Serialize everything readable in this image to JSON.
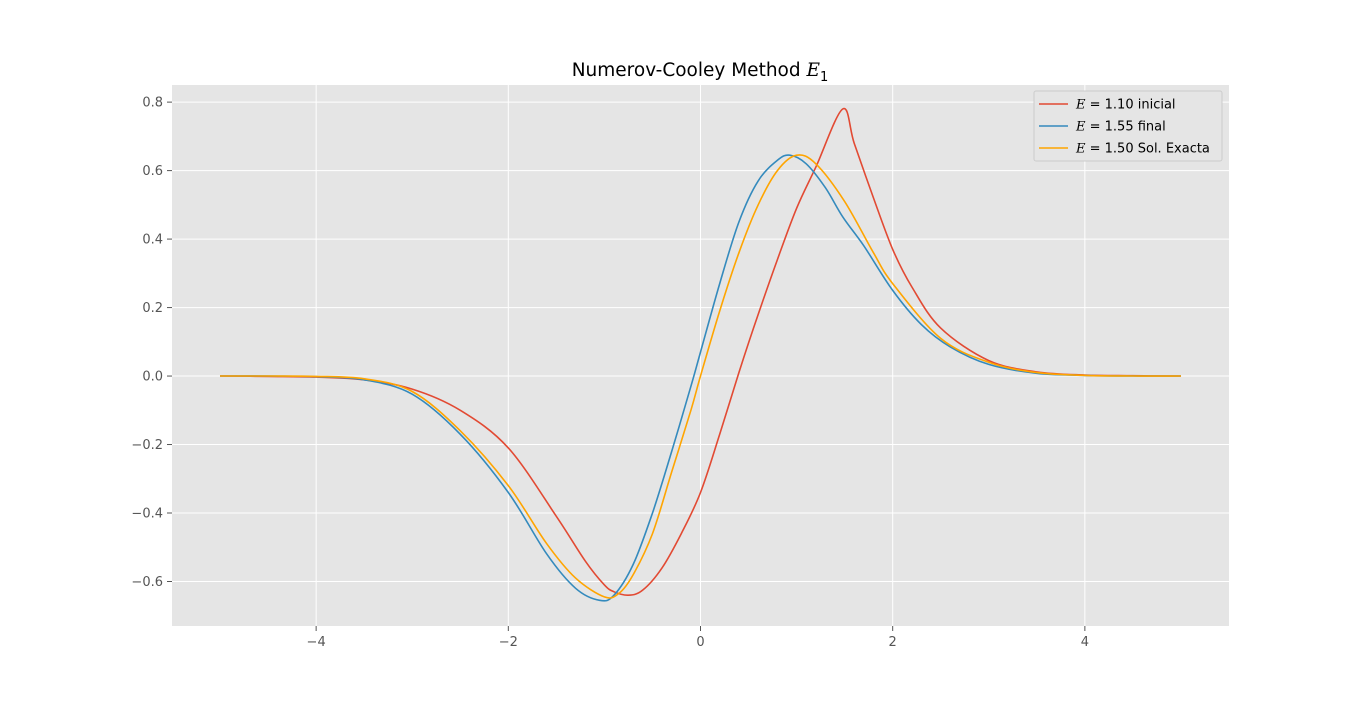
{
  "chart_data": {
    "type": "line",
    "title": "Numerov-Cooley Method E₁",
    "title_parts": {
      "prefix": "Numerov-Cooley Method ",
      "symbol": "E",
      "subscript": "1"
    },
    "xlabel": "",
    "ylabel": "",
    "xlim": [
      -5.5,
      5.5
    ],
    "ylim": [
      -0.73,
      0.85
    ],
    "xticks": [
      -4,
      -2,
      0,
      2,
      4
    ],
    "xtick_labels": [
      "−4",
      "−2",
      "0",
      "2",
      "4"
    ],
    "yticks": [
      -0.6,
      -0.4,
      -0.2,
      0.0,
      0.2,
      0.4,
      0.6,
      0.8
    ],
    "ytick_labels": [
      "−0.6",
      "−0.4",
      "−0.2",
      "0.0",
      "0.2",
      "0.4",
      "0.6",
      "0.8"
    ],
    "grid": true,
    "legend_position": "top-right",
    "background": "#e5e5e5",
    "series": [
      {
        "name": "E = 1.10 inicial",
        "legend_symbol": "E",
        "legend_text": " = 1.10 inicial",
        "color": "#e24a33",
        "x": [
          -5.0,
          -4.5,
          -4.0,
          -3.5,
          -3.0,
          -2.5,
          -2.0,
          -1.5,
          -1.2,
          -1.0,
          -0.9,
          -0.75,
          -0.6,
          -0.4,
          -0.2,
          0.0,
          0.2,
          0.4,
          0.6,
          0.8,
          1.0,
          1.2,
          1.48,
          1.6,
          1.8,
          2.0,
          2.2,
          2.5,
          3.0,
          3.5,
          4.0,
          4.5,
          5.0
        ],
        "y": [
          0.0,
          -0.001,
          -0.003,
          -0.011,
          -0.038,
          -0.1,
          -0.21,
          -0.41,
          -0.54,
          -0.61,
          -0.63,
          -0.64,
          -0.625,
          -0.56,
          -0.46,
          -0.34,
          -0.17,
          0.01,
          0.18,
          0.34,
          0.49,
          0.61,
          0.78,
          0.68,
          0.52,
          0.37,
          0.26,
          0.14,
          0.045,
          0.012,
          0.003,
          0.001,
          0.0
        ]
      },
      {
        "name": "E = 1.55 final",
        "legend_symbol": "E",
        "legend_text": " = 1.55 final",
        "color": "#348abd",
        "x": [
          -5.0,
          -4.5,
          -4.0,
          -3.5,
          -3.0,
          -2.5,
          -2.0,
          -1.6,
          -1.3,
          -1.05,
          -0.9,
          -0.7,
          -0.5,
          -0.3,
          -0.1,
          0.0,
          0.2,
          0.4,
          0.6,
          0.8,
          0.93,
          1.1,
          1.3,
          1.48,
          1.7,
          2.0,
          2.3,
          2.6,
          3.0,
          3.5,
          4.0,
          4.5,
          5.0
        ],
        "y": [
          0.0,
          0.0,
          -0.002,
          -0.011,
          -0.053,
          -0.17,
          -0.34,
          -0.52,
          -0.62,
          -0.655,
          -0.64,
          -0.55,
          -0.4,
          -0.22,
          -0.03,
          0.07,
          0.27,
          0.45,
          0.57,
          0.63,
          0.645,
          0.62,
          0.55,
          0.465,
          0.38,
          0.25,
          0.15,
          0.085,
          0.034,
          0.008,
          0.002,
          0.0,
          0.0
        ]
      },
      {
        "name": "E = 1.50 Sol. Exacta",
        "legend_symbol": "E",
        "legend_text": " = 1.50 Sol. Exacta",
        "color": "#ffa500",
        "x": [
          -5.0,
          -4.5,
          -4.0,
          -3.5,
          -3.0,
          -2.5,
          -2.0,
          -1.6,
          -1.3,
          -1.0,
          -0.85,
          -0.7,
          -0.5,
          -0.3,
          -0.1,
          0.0,
          0.2,
          0.4,
          0.6,
          0.8,
          1.0,
          1.2,
          1.5,
          1.8,
          2.0,
          2.5,
          3.0,
          3.5,
          4.0,
          4.5,
          5.0
        ],
        "y": [
          0.0,
          0.0,
          -0.001,
          -0.008,
          -0.045,
          -0.16,
          -0.32,
          -0.49,
          -0.59,
          -0.645,
          -0.635,
          -0.58,
          -0.46,
          -0.28,
          -0.1,
          0.0,
          0.19,
          0.36,
          0.5,
          0.6,
          0.645,
          0.62,
          0.51,
          0.36,
          0.27,
          0.11,
          0.04,
          0.01,
          0.002,
          0.0,
          0.0
        ]
      }
    ]
  }
}
